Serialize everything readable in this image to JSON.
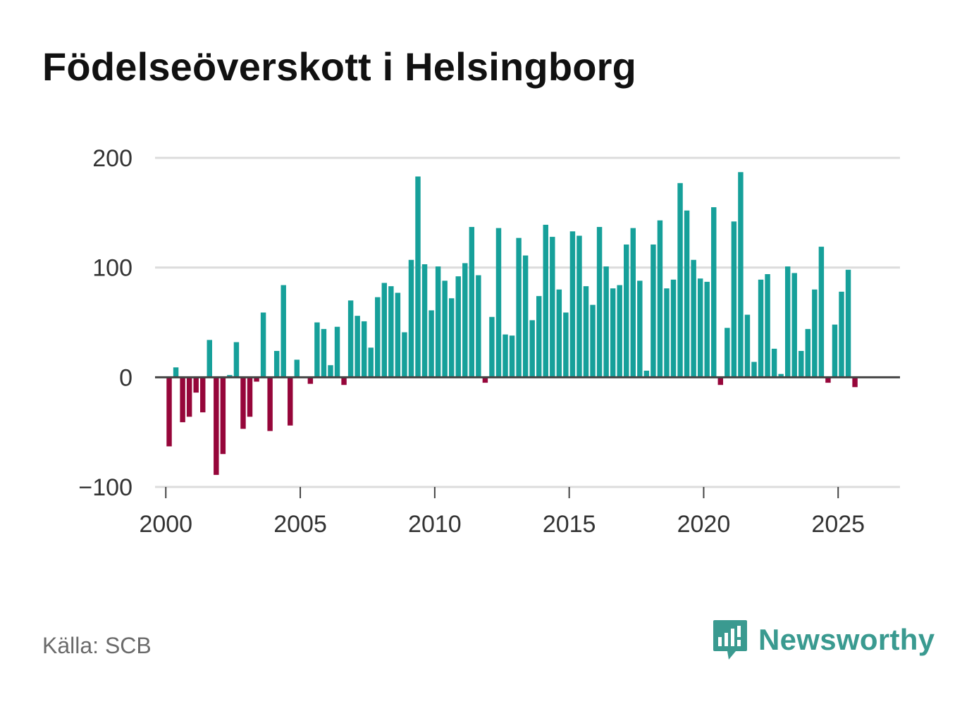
{
  "chart_data": {
    "type": "bar",
    "title": "Födelseöverskott i Helsingborg",
    "xlabel": "",
    "ylabel": "",
    "ylim": [
      -100,
      200
    ],
    "yticks": [
      -100,
      0,
      100,
      200
    ],
    "ytick_labels": [
      "−100",
      "0",
      "100",
      "200"
    ],
    "xticks": [
      2000,
      2005,
      2010,
      2015,
      2020,
      2025
    ],
    "xtick_labels": [
      "2000",
      "2005",
      "2010",
      "2015",
      "2020",
      "2025"
    ],
    "xlim": [
      1999.6,
      2027.3
    ],
    "grid": true,
    "frequency": "quarterly",
    "start": [
      2000,
      1
    ],
    "positive_color": "#16a09a",
    "negative_color": "#96063a",
    "values": [
      -63,
      9,
      -41,
      -36,
      -14,
      -32,
      34,
      -89,
      -70,
      2,
      32,
      -47,
      -36,
      -4,
      59,
      -49,
      24,
      84,
      -44,
      16,
      0,
      -6,
      50,
      44,
      11,
      46,
      -7,
      70,
      56,
      51,
      27,
      73,
      86,
      83,
      77,
      41,
      107,
      183,
      103,
      61,
      101,
      88,
      72,
      92,
      104,
      137,
      93,
      -5,
      55,
      136,
      39,
      38,
      127,
      111,
      52,
      74,
      139,
      128,
      80,
      59,
      133,
      129,
      83,
      66,
      137,
      101,
      81,
      84,
      121,
      136,
      88,
      6,
      121,
      143,
      81,
      89,
      177,
      152,
      107,
      90,
      87,
      155,
      -7,
      45,
      142,
      187,
      57,
      14,
      89,
      94,
      26,
      3,
      101,
      95,
      24,
      44,
      80,
      119,
      -5,
      48,
      78,
      98,
      -9
    ]
  },
  "source": "Källa: SCB",
  "brand": {
    "name": "Newsworthy",
    "color": "#3a9a90",
    "icon": "bar-chart-speech-icon"
  }
}
